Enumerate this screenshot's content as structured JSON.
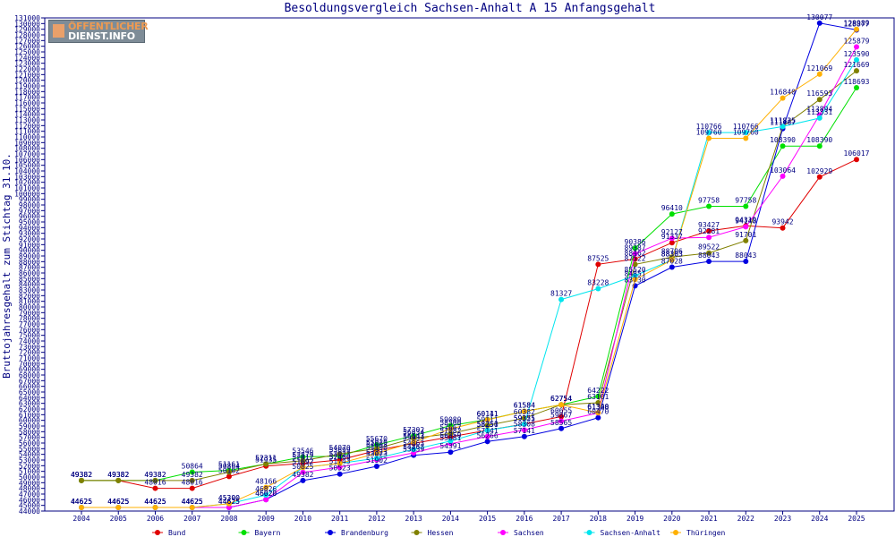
{
  "logo": {
    "line1": "ÖFFENTLICHER",
    "line2": "DIENST.INFO"
  },
  "chart_data": {
    "type": "line",
    "title": "Besoldungsvergleich Sachsen-Anhalt A 15 Anfangsgehalt",
    "xlabel": "",
    "ylabel": "Bruttojahresgehalt zum Stichtag 31.10.",
    "categories": [
      "2004",
      "2005",
      "2006",
      "2007",
      "2008",
      "2009",
      "2010",
      "2011",
      "2012",
      "2013",
      "2014",
      "2015",
      "2016",
      "2017",
      "2018",
      "2019",
      "2020",
      "2021",
      "2022",
      "2023",
      "2024",
      "2025"
    ],
    "ylim": [
      44000,
      131000
    ],
    "ytick_step": 1000,
    "grid": false,
    "legend": "bottom",
    "series": [
      {
        "name": "Bund",
        "color": "#e00000",
        "values": [
          49382,
          49382,
          48016,
          48016,
          50102,
          51935,
          52412,
          53023,
          54693,
          55934,
          57082,
          58251,
          59355,
          60655,
          87525,
          88462,
          91337,
          93427,
          94319,
          93942,
          102929,
          106017
        ]
      },
      {
        "name": "Bayern",
        "color": "#00e000",
        "values": [
          49382,
          49382,
          49382,
          50864,
          51161,
          52311,
          53546,
          53699,
          55670,
          57302,
          59080,
          60141,
          61584,
          62754,
          64222,
          90386,
          96410,
          97758,
          97758,
          108390,
          108390,
          118693
        ]
      },
      {
        "name": "Brandenburg",
        "color": "#0000e0",
        "values": [
          44625,
          44625,
          44625,
          44625,
          44625,
          46020,
          49382,
          50523,
          51902,
          53839,
          54391,
          56266,
          57141,
          58565,
          60470,
          83730,
          87028,
          88043,
          88043,
          111467,
          130077,
          128877
        ]
      },
      {
        "name": "Hessen",
        "color": "#808000",
        "values": [
          49382,
          49382,
          49382,
          49382,
          50864,
          52311,
          52879,
          54070,
          55020,
          56834,
          57667,
          59111,
          60382,
          62754,
          63101,
          87522,
          88796,
          89522,
          91701,
          111835,
          116593,
          121669
        ]
      },
      {
        "name": "Sachsen",
        "color": "#ff00ff",
        "values": [
          44625,
          44625,
          44625,
          44625,
          44625,
          46020,
          50825,
          51743,
          53023,
          54263,
          55881,
          57141,
          58308,
          59867,
          61308,
          89387,
          92127,
          92281,
          94148,
          103064,
          113894,
          125879
        ]
      },
      {
        "name": "Sachsen-Anhalt",
        "color": "#00e5ee",
        "values": [
          44625,
          44625,
          44625,
          44625,
          45300,
          46826,
          51692,
          52409,
          53323,
          54863,
          56350,
          58250,
          59321,
          81327,
          83228,
          85520,
          88303,
          110766,
          110766,
          111835,
          113331,
          123590
        ]
      },
      {
        "name": "Thüringen",
        "color": "#ffb000",
        "values": [
          44625,
          44625,
          44625,
          44625,
          45300,
          48166,
          51692,
          52409,
          54190,
          56143,
          58500,
          60111,
          61584,
          62754,
          61340,
          84851,
          88303,
          109760,
          109760,
          116840,
          121069,
          128989
        ]
      }
    ]
  }
}
